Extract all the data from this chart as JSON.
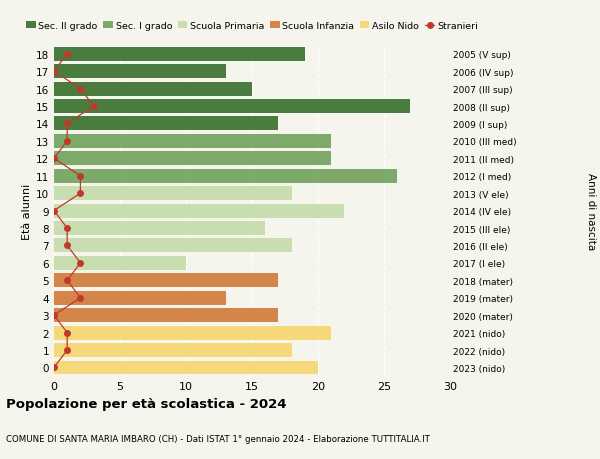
{
  "ages": [
    18,
    17,
    16,
    15,
    14,
    13,
    12,
    11,
    10,
    9,
    8,
    7,
    6,
    5,
    4,
    3,
    2,
    1,
    0
  ],
  "bar_values": [
    19,
    13,
    15,
    27,
    17,
    21,
    21,
    26,
    18,
    22,
    16,
    18,
    10,
    17,
    13,
    17,
    21,
    18,
    20
  ],
  "bar_colors": [
    "#4a7c40",
    "#4a7c40",
    "#4a7c40",
    "#4a7c40",
    "#4a7c40",
    "#7daa6a",
    "#7daa6a",
    "#7daa6a",
    "#c8ddb0",
    "#c8ddb0",
    "#c8ddb0",
    "#c8ddb0",
    "#c8ddb0",
    "#d4854a",
    "#d4854a",
    "#d4854a",
    "#f5d87a",
    "#f5d87a",
    "#f5d87a"
  ],
  "stranieri_x": [
    1,
    0,
    2,
    3,
    1,
    1,
    0,
    2,
    2,
    0,
    1,
    1,
    2,
    1,
    2,
    0,
    1,
    1,
    0
  ],
  "right_labels": [
    "2005 (V sup)",
    "2006 (IV sup)",
    "2007 (III sup)",
    "2008 (II sup)",
    "2009 (I sup)",
    "2010 (III med)",
    "2011 (II med)",
    "2012 (I med)",
    "2013 (V ele)",
    "2014 (IV ele)",
    "2015 (III ele)",
    "2016 (II ele)",
    "2017 (I ele)",
    "2018 (mater)",
    "2019 (mater)",
    "2020 (mater)",
    "2021 (nido)",
    "2022 (nido)",
    "2023 (nido)"
  ],
  "legend_colors": [
    "#4a7c40",
    "#7daa6a",
    "#c8ddb0",
    "#d4854a",
    "#f5d87a"
  ],
  "legend_labels": [
    "Sec. II grado",
    "Sec. I grado",
    "Scuola Primaria",
    "Scuola Infanzia",
    "Asilo Nido"
  ],
  "stranieri_color": "#c0392b",
  "title": "Popolazione per età scolastica - 2024",
  "subtitle": "COMUNE DI SANTA MARIA IMBARO (CH) - Dati ISTAT 1° gennaio 2024 - Elaborazione TUTTITALIA.IT",
  "ylabel_left": "Età alunni",
  "ylabel_right": "Anni di nascita",
  "xlim": [
    0,
    30
  ],
  "background_color": "#f5f5ee",
  "grid_color": "#ffffff"
}
